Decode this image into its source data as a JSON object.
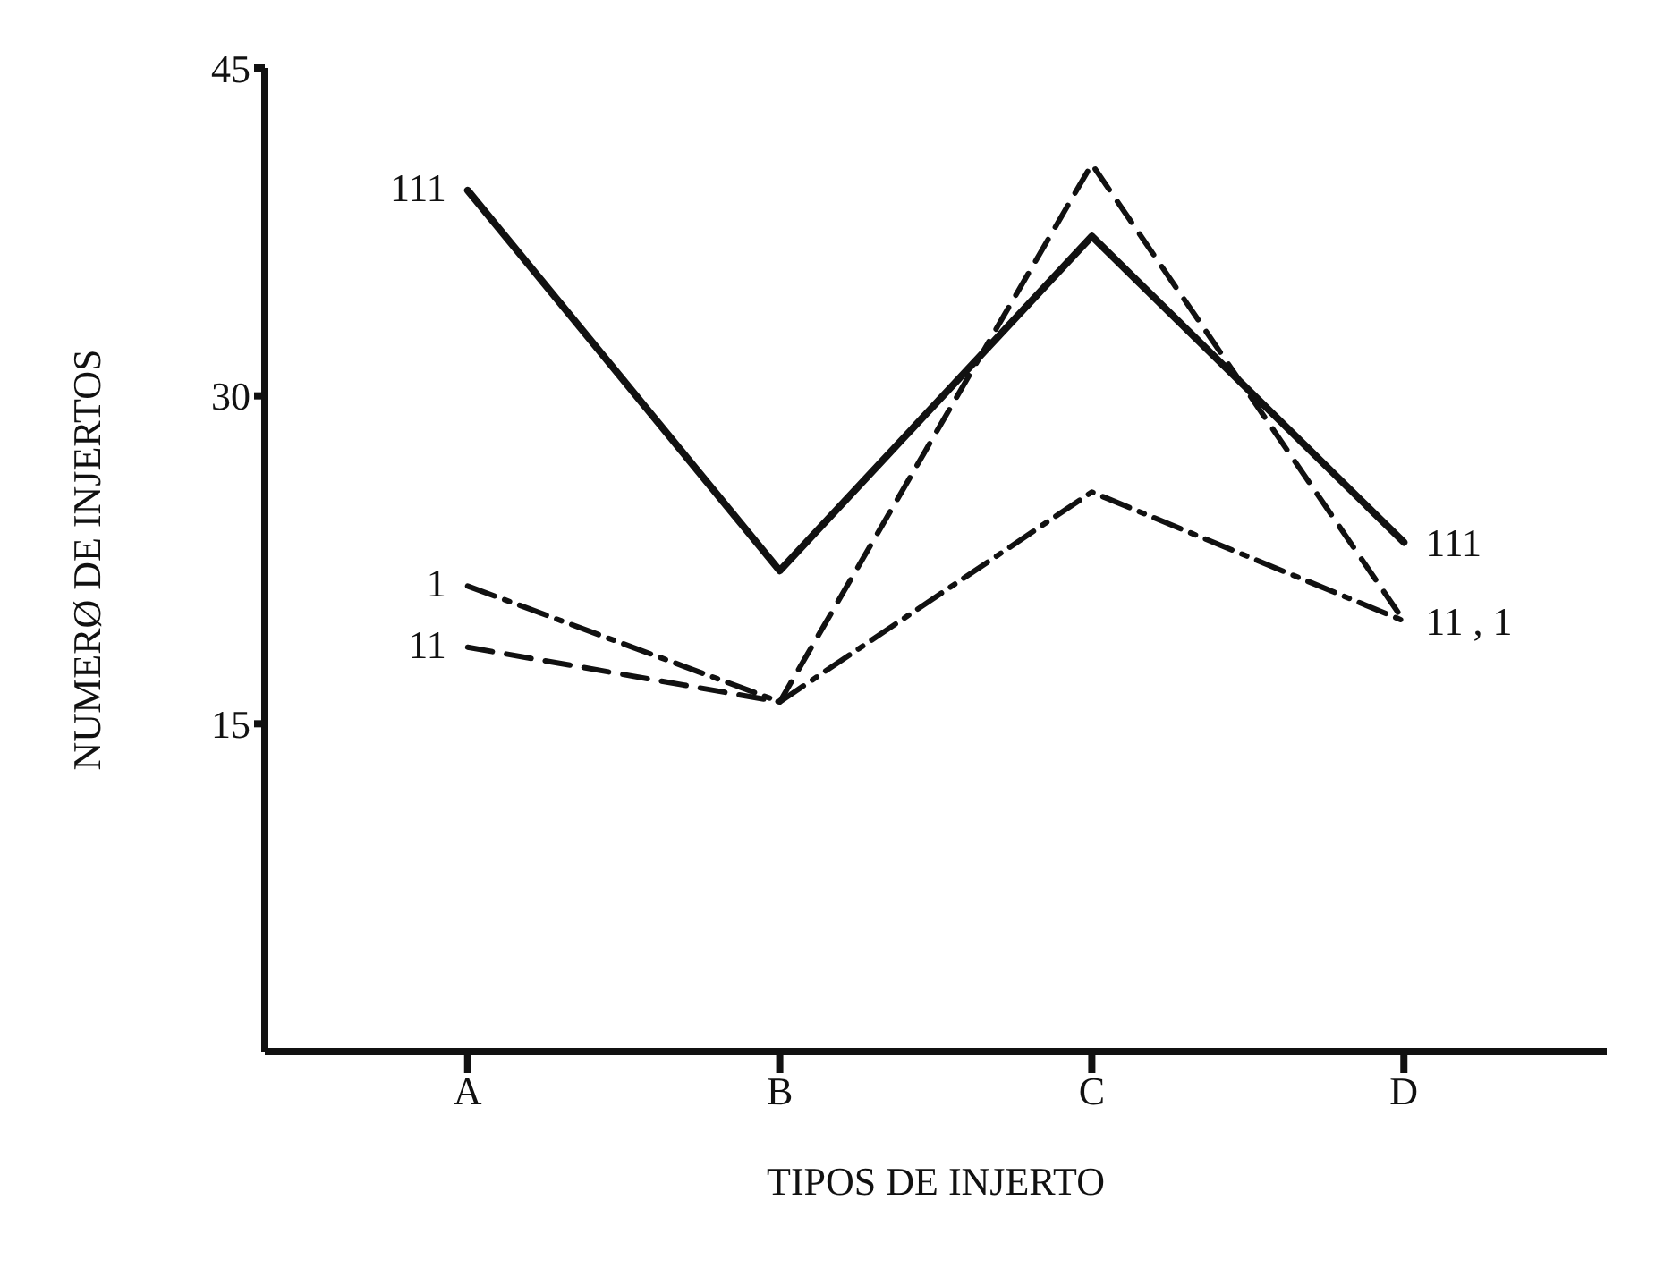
{
  "chart_data": {
    "type": "line",
    "xlabel": "TIPOS DE INJERTO",
    "ylabel": "NUMERØ DE INJERTOS",
    "categories": [
      "A",
      "B",
      "C",
      "D"
    ],
    "series": [
      {
        "name": "111",
        "color": "#111111",
        "line_style": "solid",
        "values": [
          39.4,
          22.0,
          37.3,
          23.3
        ]
      },
      {
        "name": "11",
        "color": "#111111",
        "line_style": "dashed",
        "values": [
          18.5,
          16.0,
          40.6,
          19.7
        ]
      },
      {
        "name": "1",
        "color": "#111111",
        "line_style": "dashdot",
        "values": [
          21.3,
          16.0,
          25.6,
          19.7
        ]
      }
    ],
    "ylim": [
      0,
      45
    ],
    "yticks": [
      15,
      30,
      45
    ],
    "grid": false,
    "legend": false,
    "marker": "none",
    "annotations": [
      {
        "text": "11 , 1",
        "x": "D",
        "y": 19.7
      }
    ]
  }
}
